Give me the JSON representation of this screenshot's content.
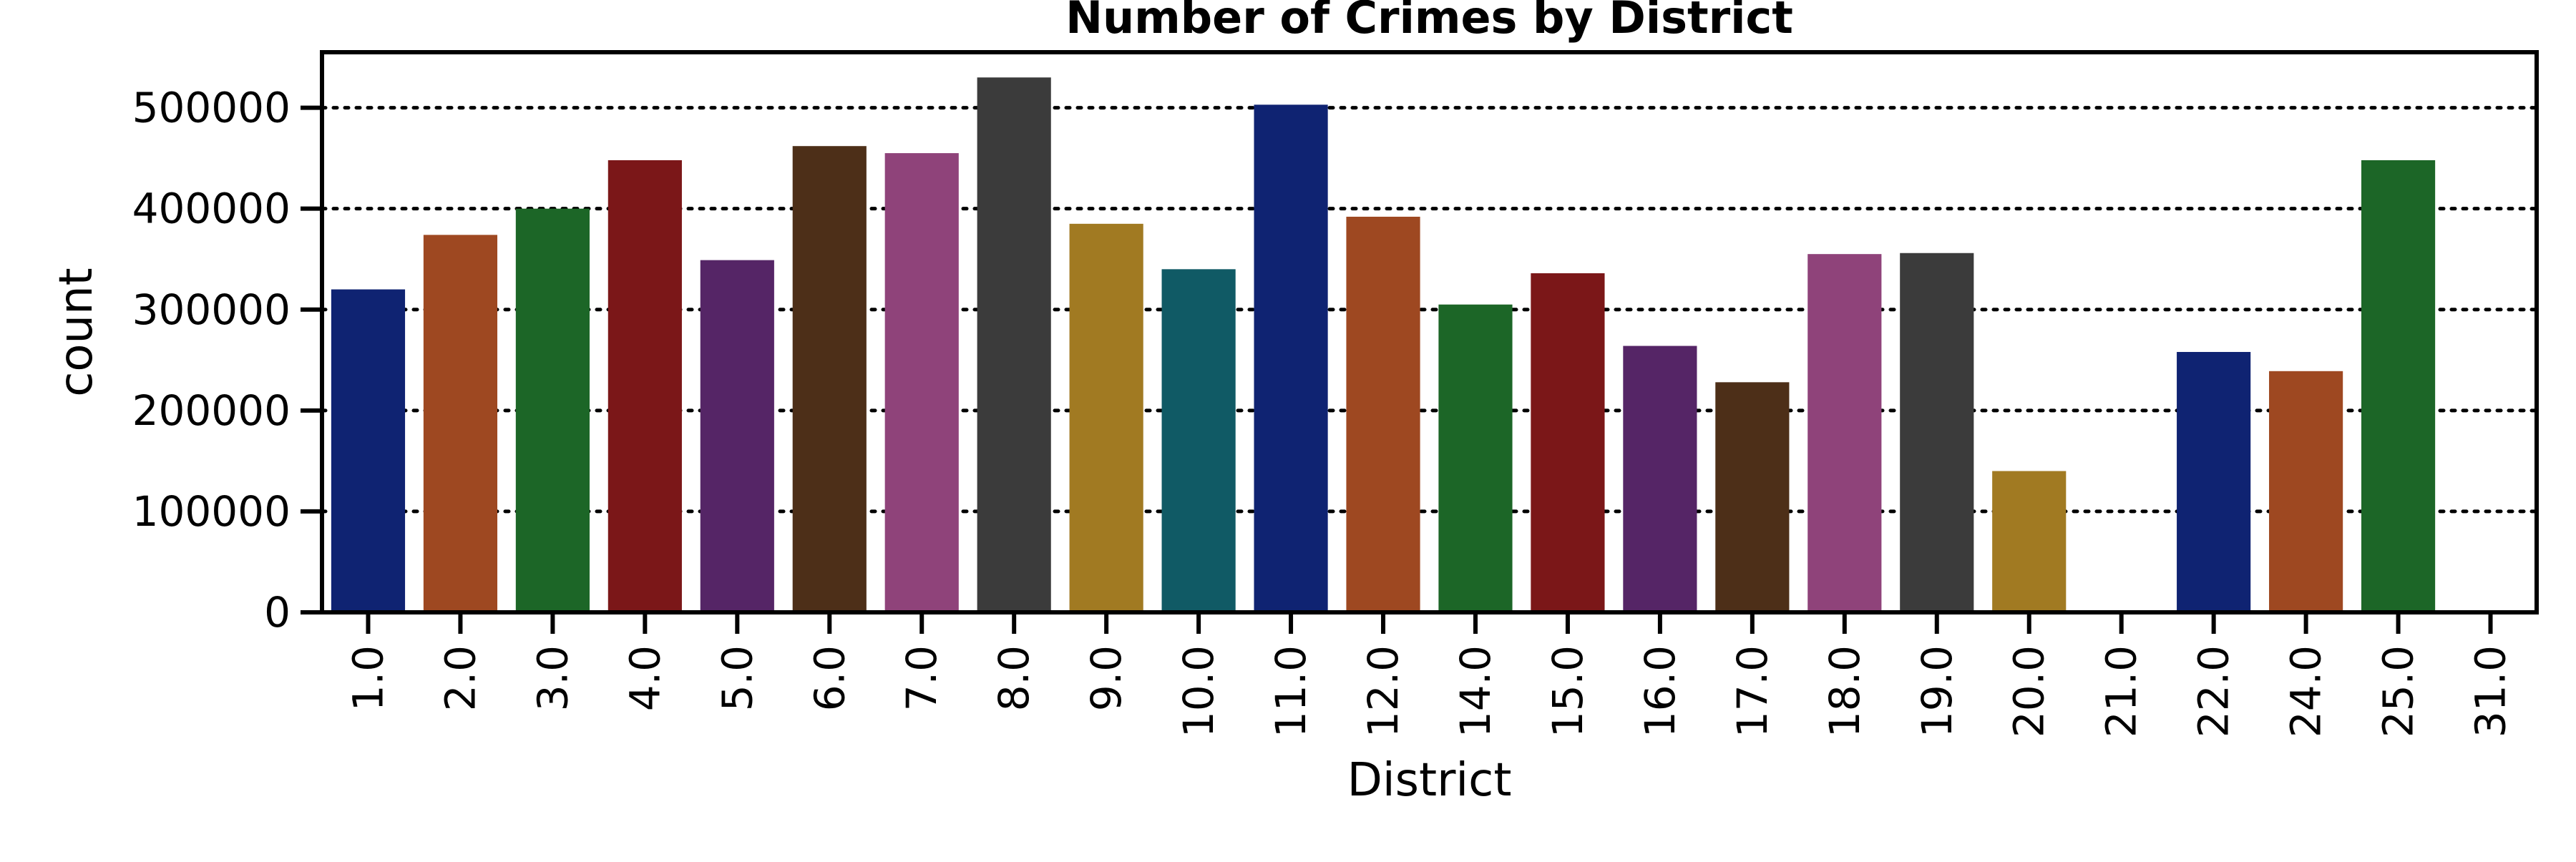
{
  "chart_data": {
    "type": "bar",
    "title": "Number of Crimes by District",
    "xlabel": "District",
    "ylabel": "count",
    "categories": [
      "1.0",
      "2.0",
      "3.0",
      "4.0",
      "5.0",
      "6.0",
      "7.0",
      "8.0",
      "9.0",
      "10.0",
      "11.0",
      "12.0",
      "14.0",
      "15.0",
      "16.0",
      "17.0",
      "18.0",
      "19.0",
      "20.0",
      "21.0",
      "22.0",
      "24.0",
      "25.0",
      "31.0"
    ],
    "values": [
      320000,
      374000,
      400000,
      448000,
      349000,
      462000,
      455000,
      530000,
      385000,
      340000,
      503000,
      392000,
      305000,
      336000,
      264000,
      228000,
      355000,
      356000,
      140000,
      0,
      258000,
      239000,
      448000,
      0
    ],
    "colors": [
      "#0f2372",
      "#9e4821",
      "#1c6627",
      "#7b1718",
      "#552566",
      "#4d2f18",
      "#8f437a",
      "#3b3b3b",
      "#a17a22",
      "#105a65",
      "#0f2372",
      "#9e4821",
      "#1c6627",
      "#7b1718",
      "#552566",
      "#4d2f18",
      "#8f437a",
      "#3b3b3b",
      "#a17a22",
      "#105a65",
      "#0f2372",
      "#9e4821",
      "#1c6627",
      "#7b1718"
    ],
    "ylim": [
      0,
      555000
    ],
    "yticks": [
      {
        "value": 0,
        "label": "0"
      },
      {
        "value": 100000,
        "label": "100000"
      },
      {
        "value": 200000,
        "label": "200000"
      },
      {
        "value": 300000,
        "label": "300000"
      },
      {
        "value": 400000,
        "label": "400000"
      },
      {
        "value": 500000,
        "label": "500000"
      }
    ],
    "grid": "y, dotted",
    "legend": "none"
  }
}
